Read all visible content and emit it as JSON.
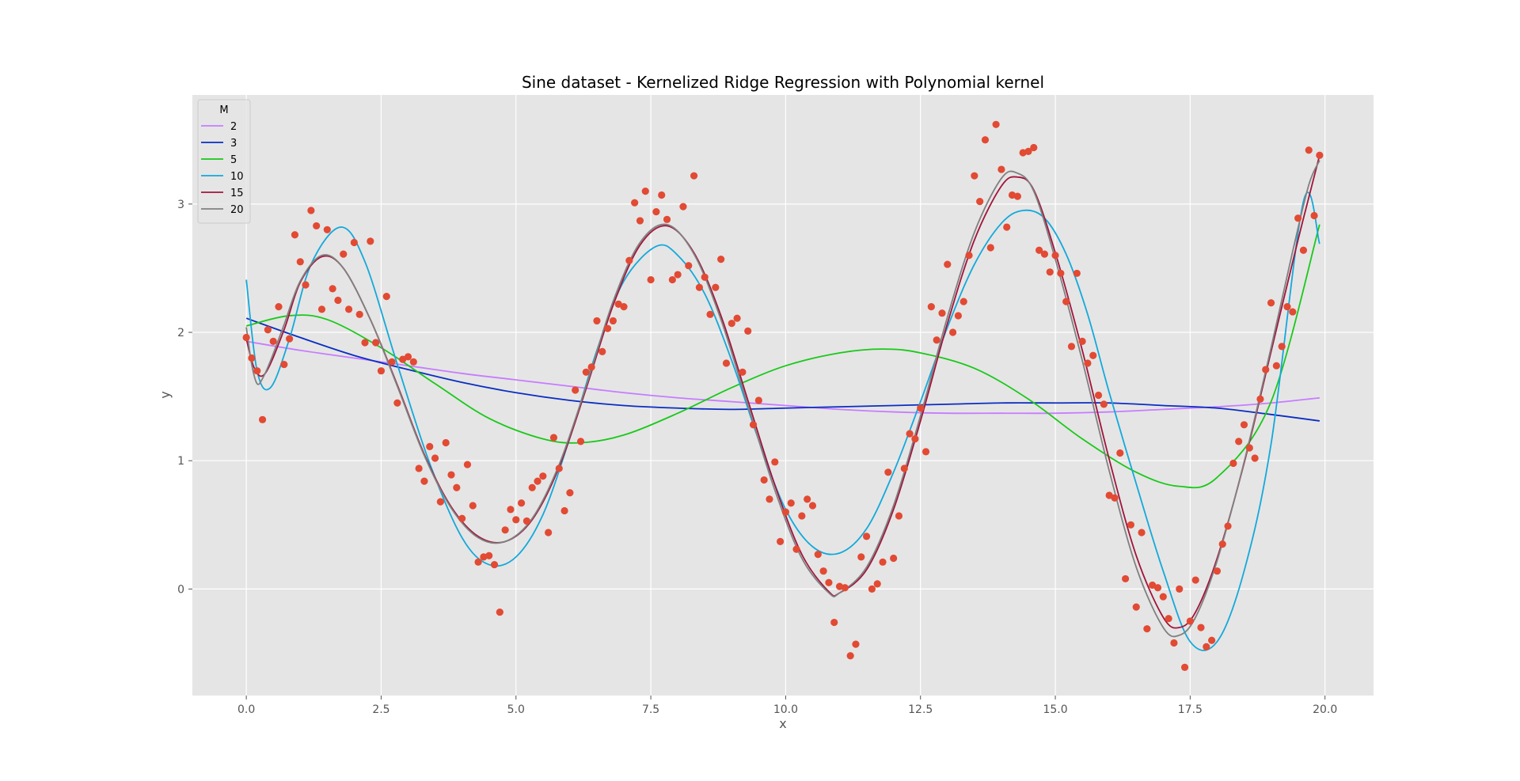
{
  "chart_data": {
    "type": "line",
    "title": "Sine dataset - Kernelized Ridge Regression with Polynomial kernel",
    "xlabel": "x",
    "ylabel": "y",
    "xlim": [
      -1.0,
      20.9
    ],
    "ylim": [
      -0.83,
      3.85
    ],
    "xticks": [
      0.0,
      2.5,
      5.0,
      7.5,
      10.0,
      12.5,
      15.0,
      17.5,
      20.0
    ],
    "xtick_labels": [
      "0.0",
      "2.5",
      "5.0",
      "7.5",
      "10.0",
      "12.5",
      "15.0",
      "17.5",
      "20.0"
    ],
    "yticks": [
      0,
      1,
      2,
      3
    ],
    "ytick_labels": [
      "0",
      "1",
      "2",
      "3"
    ],
    "grid": true,
    "legend": {
      "title": "M",
      "position": "top-left"
    },
    "scatter_color": "#E24A33",
    "series": [
      {
        "name": "2",
        "color": "#C77CFF",
        "x": [
          0,
          1,
          2,
          3,
          4,
          5,
          6,
          7,
          8,
          9,
          10,
          11,
          12,
          13,
          14,
          15,
          16,
          17,
          18,
          19,
          19.9
        ],
        "y": [
          1.93,
          1.86,
          1.8,
          1.74,
          1.68,
          1.63,
          1.58,
          1.53,
          1.49,
          1.46,
          1.43,
          1.4,
          1.38,
          1.37,
          1.37,
          1.37,
          1.38,
          1.4,
          1.42,
          1.45,
          1.49
        ]
      },
      {
        "name": "3",
        "color": "#0A2DC2",
        "x": [
          0,
          1,
          2,
          3,
          4,
          5,
          6,
          7,
          8,
          9,
          10,
          11,
          12,
          13,
          14,
          15,
          16,
          17,
          18,
          19,
          19.9
        ],
        "y": [
          2.11,
          1.96,
          1.82,
          1.71,
          1.61,
          1.53,
          1.47,
          1.43,
          1.41,
          1.4,
          1.41,
          1.42,
          1.43,
          1.44,
          1.45,
          1.45,
          1.45,
          1.43,
          1.41,
          1.36,
          1.31
        ]
      },
      {
        "name": "5",
        "color": "#18C918",
        "x": [
          0,
          0.8,
          1.5,
          2.5,
          3.5,
          4.5,
          5.5,
          6.2,
          7,
          8,
          9,
          10,
          11,
          11.8,
          12.5,
          13.5,
          14.5,
          15.5,
          16.5,
          17.3,
          18,
          19,
          19.9
        ],
        "y": [
          2.05,
          2.13,
          2.1,
          1.88,
          1.6,
          1.33,
          1.17,
          1.14,
          1.2,
          1.37,
          1.57,
          1.74,
          1.84,
          1.87,
          1.84,
          1.72,
          1.48,
          1.17,
          0.91,
          0.8,
          0.87,
          1.46,
          2.84
        ]
      },
      {
        "name": "10",
        "color": "#12A9DB",
        "x": [
          0,
          0.2,
          0.45,
          0.8,
          1.2,
          1.75,
          2.2,
          2.8,
          3.4,
          4.0,
          4.5,
          5.0,
          5.5,
          6.0,
          6.5,
          7.0,
          7.6,
          8.0,
          8.5,
          9.0,
          9.5,
          10.0,
          10.5,
          11.0,
          11.5,
          12.0,
          12.5,
          13.0,
          13.5,
          14.0,
          14.4,
          14.8,
          15.2,
          15.6,
          16.0,
          16.5,
          17.0,
          17.5,
          18.0,
          18.5,
          19.0,
          19.6,
          19.9
        ],
        "y": [
          2.41,
          1.7,
          1.57,
          1.95,
          2.53,
          2.82,
          2.55,
          1.75,
          0.98,
          0.4,
          0.19,
          0.25,
          0.58,
          1.18,
          1.86,
          2.4,
          2.67,
          2.6,
          2.3,
          1.78,
          1.16,
          0.62,
          0.33,
          0.28,
          0.47,
          0.91,
          1.46,
          2.04,
          2.53,
          2.85,
          2.95,
          2.89,
          2.61,
          2.14,
          1.53,
          0.82,
          0.14,
          -0.41,
          -0.41,
          0.14,
          1.13,
          3.02,
          2.69
        ]
      },
      {
        "name": "15",
        "color": "#A2143C",
        "x": [
          0,
          0.15,
          0.35,
          0.7,
          1.0,
          1.4,
          1.8,
          2.3,
          2.8,
          3.3,
          3.8,
          4.3,
          4.8,
          5.3,
          5.8,
          6.3,
          6.8,
          7.3,
          7.8,
          8.3,
          8.8,
          9.3,
          9.8,
          10.3,
          10.8,
          11.0,
          11.5,
          12.0,
          12.5,
          13.0,
          13.5,
          14.0,
          14.3,
          14.6,
          15.0,
          15.5,
          16.0,
          16.5,
          17.0,
          17.3,
          17.6,
          18.0,
          18.5,
          19.0,
          19.5,
          19.9
        ],
        "y": [
          1.95,
          1.72,
          1.68,
          2.02,
          2.39,
          2.59,
          2.5,
          2.1,
          1.59,
          1.05,
          0.64,
          0.41,
          0.37,
          0.54,
          0.95,
          1.56,
          2.21,
          2.68,
          2.83,
          2.62,
          2.13,
          1.47,
          0.81,
          0.27,
          -0.02,
          -0.03,
          0.15,
          0.62,
          1.31,
          2.07,
          2.72,
          3.14,
          3.21,
          3.11,
          2.62,
          1.86,
          1.01,
          0.26,
          -0.22,
          -0.3,
          -0.18,
          0.24,
          0.98,
          1.85,
          2.72,
          3.38
        ]
      },
      {
        "name": "20",
        "color": "#808080",
        "x": [
          0,
          0.1,
          0.2,
          0.3,
          0.45,
          0.7,
          1.0,
          1.4,
          1.8,
          2.3,
          2.8,
          3.3,
          3.8,
          4.3,
          4.8,
          5.3,
          5.8,
          6.3,
          6.8,
          7.3,
          7.8,
          8.3,
          8.8,
          9.3,
          9.8,
          10.3,
          10.8,
          11.0,
          11.5,
          12.0,
          12.5,
          13.0,
          13.5,
          14.0,
          14.3,
          14.6,
          15.0,
          15.5,
          16.0,
          16.5,
          17.0,
          17.3,
          17.6,
          18.0,
          18.5,
          19.0,
          19.4,
          19.7,
          19.9
        ],
        "y": [
          2.04,
          1.75,
          1.6,
          1.64,
          1.78,
          2.06,
          2.4,
          2.6,
          2.5,
          2.1,
          1.58,
          1.04,
          0.63,
          0.4,
          0.37,
          0.55,
          0.97,
          1.58,
          2.24,
          2.7,
          2.84,
          2.61,
          2.1,
          1.43,
          0.77,
          0.24,
          -0.03,
          -0.03,
          0.17,
          0.65,
          1.35,
          2.12,
          2.78,
          3.2,
          3.24,
          3.1,
          2.57,
          1.78,
          0.92,
          0.17,
          -0.3,
          -0.36,
          -0.22,
          0.22,
          0.99,
          1.88,
          2.63,
          3.15,
          3.34
        ]
      }
    ],
    "points": {
      "x": [
        0.0,
        0.1,
        0.2,
        0.3,
        0.4,
        0.5,
        0.6,
        0.7,
        0.8,
        0.9,
        1.0,
        1.1,
        1.2,
        1.3,
        1.4,
        1.5,
        1.6,
        1.7,
        1.8,
        1.9,
        2.0,
        2.1,
        2.2,
        2.3,
        2.4,
        2.5,
        2.6,
        2.7,
        2.8,
        2.9,
        3.0,
        3.1,
        3.2,
        3.3,
        3.4,
        3.5,
        3.6,
        3.7,
        3.8,
        3.9,
        4.0,
        4.1,
        4.2,
        4.3,
        4.4,
        4.5,
        4.6,
        4.7,
        4.8,
        4.9,
        5.0,
        5.1,
        5.2,
        5.3,
        5.4,
        5.5,
        5.6,
        5.7,
        5.8,
        5.9,
        6.0,
        6.1,
        6.2,
        6.3,
        6.4,
        6.5,
        6.6,
        6.7,
        6.8,
        6.9,
        7.0,
        7.1,
        7.2,
        7.3,
        7.4,
        7.5,
        7.6,
        7.7,
        7.8,
        7.9,
        8.0,
        8.1,
        8.2,
        8.3,
        8.4,
        8.5,
        8.6,
        8.7,
        8.8,
        8.9,
        9.0,
        9.1,
        9.2,
        9.3,
        9.4,
        9.5,
        9.6,
        9.7,
        9.8,
        9.9,
        10.0,
        10.1,
        10.2,
        10.3,
        10.4,
        10.5,
        10.6,
        10.7,
        10.8,
        10.9,
        11.0,
        11.1,
        11.2,
        11.3,
        11.4,
        11.5,
        11.6,
        11.7,
        11.8,
        11.9,
        12.0,
        12.1,
        12.2,
        12.3,
        12.4,
        12.5,
        12.6,
        12.7,
        12.8,
        12.9,
        13.0,
        13.1,
        13.2,
        13.3,
        13.4,
        13.5,
        13.6,
        13.7,
        13.8,
        13.9,
        14.0,
        14.1,
        14.2,
        14.3,
        14.4,
        14.5,
        14.6,
        14.7,
        14.8,
        14.9,
        15.0,
        15.1,
        15.2,
        15.3,
        15.4,
        15.5,
        15.6,
        15.7,
        15.8,
        15.9,
        16.0,
        16.1,
        16.2,
        16.3,
        16.4,
        16.5,
        16.6,
        16.7,
        16.8,
        16.9,
        17.0,
        17.1,
        17.2,
        17.3,
        17.4,
        17.5,
        17.6,
        17.7,
        17.8,
        17.9,
        18.0,
        18.1,
        18.2,
        18.3,
        18.4,
        18.5,
        18.6,
        18.7,
        18.8,
        18.9,
        19.0,
        19.1,
        19.2,
        19.3,
        19.4,
        19.5,
        19.6,
        19.7,
        19.8,
        19.9
      ],
      "y": [
        1.96,
        1.8,
        1.7,
        1.32,
        2.02,
        1.93,
        2.2,
        1.75,
        1.95,
        2.76,
        2.55,
        2.37,
        2.95,
        2.83,
        2.18,
        2.8,
        2.34,
        2.25,
        2.61,
        2.18,
        2.7,
        2.14,
        1.92,
        2.71,
        1.92,
        1.7,
        2.28,
        1.77,
        1.45,
        1.79,
        1.81,
        1.77,
        0.94,
        0.84,
        1.11,
        1.02,
        0.68,
        1.14,
        0.89,
        0.79,
        0.55,
        0.97,
        0.65,
        0.21,
        0.25,
        0.26,
        0.19,
        -0.18,
        0.46,
        0.62,
        0.54,
        0.67,
        0.53,
        0.79,
        0.84,
        0.88,
        0.44,
        1.18,
        0.94,
        0.61,
        0.75,
        1.55,
        1.15,
        1.69,
        1.73,
        2.09,
        1.85,
        2.03,
        2.09,
        2.22,
        2.2,
        2.56,
        3.01,
        2.87,
        3.1,
        2.41,
        2.94,
        3.07,
        2.88,
        2.41,
        2.45,
        2.98,
        2.52,
        3.22,
        2.35,
        2.43,
        2.14,
        2.35,
        2.57,
        1.76,
        2.07,
        2.11,
        1.69,
        2.01,
        1.28,
        1.47,
        0.85,
        0.7,
        0.99,
        0.37,
        0.6,
        0.67,
        0.31,
        0.57,
        0.7,
        0.65,
        0.27,
        0.14,
        0.05,
        -0.26,
        0.02,
        0.01,
        -0.52,
        -0.43,
        0.25,
        0.41,
        0.0,
        0.04,
        0.21,
        0.91,
        0.24,
        0.57,
        0.94,
        1.21,
        1.17,
        1.41,
        1.07,
        2.2,
        1.94,
        2.15,
        2.53,
        2.0,
        2.13,
        2.24,
        2.6,
        3.22,
        3.02,
        3.5,
        2.66,
        3.62,
        3.27,
        2.82,
        3.07,
        3.06,
        3.4,
        3.41,
        3.44,
        2.64,
        2.61,
        2.47,
        2.6,
        2.46,
        2.24,
        1.89,
        2.46,
        1.93,
        1.76,
        1.82,
        1.51,
        1.44,
        0.73,
        0.71,
        1.06,
        0.08,
        0.5,
        -0.14,
        0.44,
        -0.31,
        0.03,
        0.01,
        -0.06,
        -0.23,
        -0.42,
        0.0,
        -0.61,
        -0.25,
        0.07,
        -0.3,
        -0.45,
        -0.4,
        0.14,
        0.35,
        0.49,
        0.98,
        1.15,
        1.28,
        1.1,
        1.02,
        1.48,
        1.71,
        2.23,
        1.74,
        1.89,
        2.2,
        2.16,
        2.89,
        2.64,
        3.42,
        2.91,
        3.38
      ]
    }
  }
}
